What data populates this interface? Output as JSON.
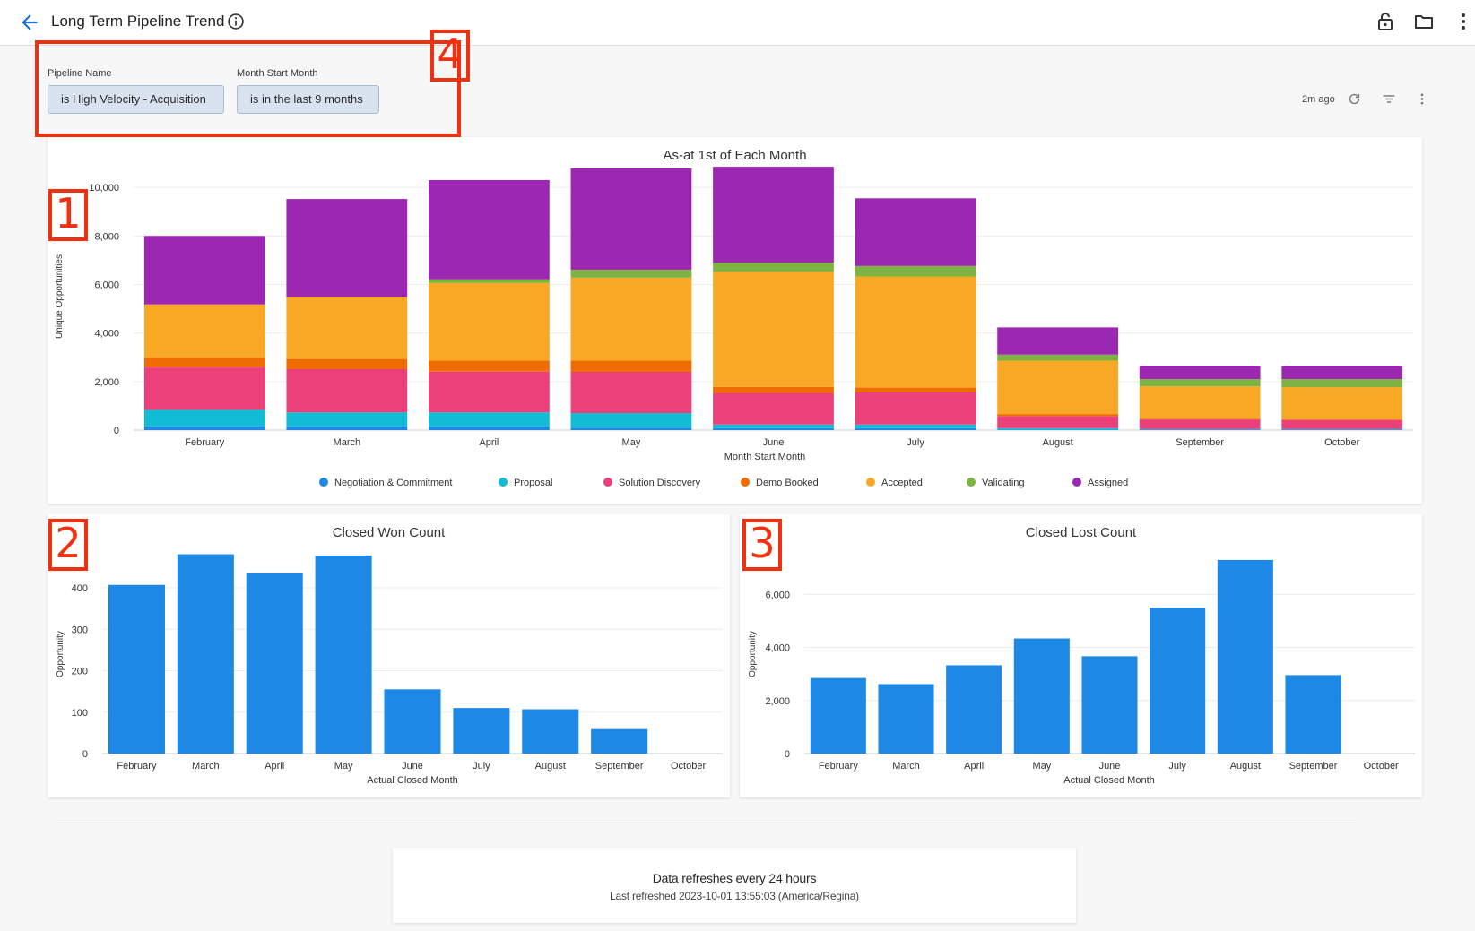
{
  "header": {
    "title": "Long Term Pipeline Trend",
    "icons": [
      "back-arrow-icon",
      "info-icon",
      "lock-icon",
      "folder-icon",
      "more-vertical-icon"
    ]
  },
  "filters": [
    {
      "label": "Pipeline Name",
      "value": "is High Velocity - Acquisition"
    },
    {
      "label": "Month Start Month",
      "value": "is in the last 9 months"
    }
  ],
  "toolbar": {
    "updated": "2m ago"
  },
  "annotations": [
    "1",
    "2",
    "3",
    "4"
  ],
  "charts": {
    "main": {
      "chart_data": {
        "type": "bar",
        "stacked": true,
        "title": "As-at 1st of Each Month",
        "xlabel": "Month Start Month",
        "ylabel": "Unique Opportunities",
        "ylim": [
          0,
          11000
        ],
        "yticks": [
          0,
          2000,
          4000,
          6000,
          8000,
          10000
        ],
        "ytick_labels": [
          "0",
          "2,000",
          "4,000",
          "6,000",
          "8,000",
          "10,000"
        ],
        "legend_position": "bottom",
        "categories": [
          "February",
          "March",
          "April",
          "May",
          "June",
          "July",
          "August",
          "September",
          "October"
        ],
        "series": [
          {
            "name": "Negotiation & Commitment",
            "color": "#1e88e5",
            "values": [
              150,
              150,
              150,
              100,
              80,
              80,
              30,
              20,
              20
            ]
          },
          {
            "name": "Proposal",
            "color": "#12bcd4",
            "values": [
              680,
              580,
              580,
              600,
              150,
              150,
              50,
              20,
              20
            ]
          },
          {
            "name": "Solution Discovery",
            "color": "#ec407a",
            "values": [
              1750,
              1780,
              1680,
              1700,
              1300,
              1320,
              500,
              400,
              380
            ]
          },
          {
            "name": "Demo Booked",
            "color": "#ef6c00",
            "values": [
              400,
              420,
              450,
              460,
              250,
              200,
              80,
              30,
              20
            ]
          },
          {
            "name": "Accepted",
            "color": "#f9a825",
            "values": [
              2200,
              2550,
              3200,
              3420,
              4750,
              4580,
              2200,
              1330,
              1330
            ]
          },
          {
            "name": "Validating",
            "color": "#7cb342",
            "values": [
              0,
              0,
              150,
              330,
              370,
              430,
              250,
              300,
              330
            ]
          },
          {
            "name": "Assigned",
            "color": "#9c27b0",
            "values": [
              2820,
              4040,
              4090,
              4170,
              3950,
              2790,
              1120,
              550,
              550
            ]
          }
        ]
      }
    },
    "won": {
      "chart_data": {
        "type": "bar",
        "title": "Closed Won Count",
        "xlabel": "Actual Closed Month",
        "ylabel": "Opportunity",
        "ylim": [
          0,
          480
        ],
        "yticks": [
          0,
          100,
          200,
          300,
          400
        ],
        "ytick_labels": [
          "0",
          "100",
          "200",
          "300",
          "400"
        ],
        "color": "#1e88e5",
        "categories": [
          "February",
          "March",
          "April",
          "May",
          "June",
          "July",
          "August",
          "September",
          "October"
        ],
        "values": [
          407,
          481,
          435,
          478,
          155,
          110,
          107,
          59,
          0
        ]
      }
    },
    "lost": {
      "chart_data": {
        "type": "bar",
        "title": "Closed Lost Count",
        "xlabel": "Actual Closed Month",
        "ylabel": "Opportunity",
        "ylim": [
          0,
          7500
        ],
        "yticks": [
          0,
          2000,
          4000,
          6000
        ],
        "ytick_labels": [
          "0",
          "2,000",
          "4,000",
          "6,000"
        ],
        "color": "#1e88e5",
        "categories": [
          "February",
          "March",
          "April",
          "May",
          "June",
          "July",
          "August",
          "September",
          "October"
        ],
        "values": [
          2850,
          2620,
          3330,
          4340,
          3670,
          5500,
          7300,
          2960,
          0
        ]
      }
    }
  },
  "footer": {
    "main": "Data refreshes every 24 hours",
    "sub": "Last refreshed 2023-10-01 13:55:03 (America/Regina)"
  }
}
